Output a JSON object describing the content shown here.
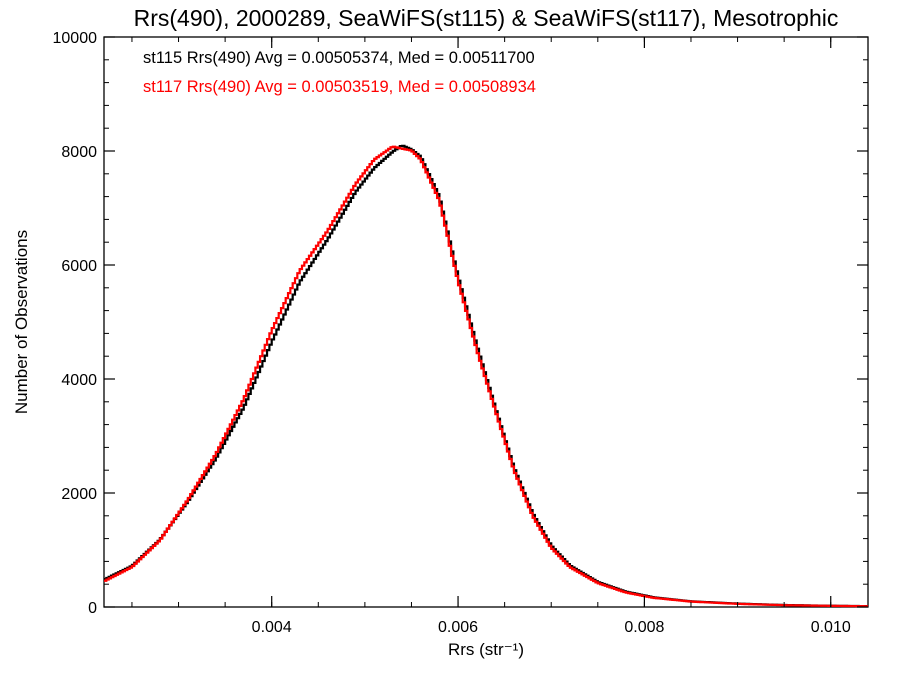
{
  "chart_data": {
    "type": "line",
    "title": "Rrs(490), 2000289, SeaWiFS(st115) & SeaWiFS(st117), Mesotrophic",
    "xlabel": "Rrs (str⁻¹)",
    "ylabel": "Number of Observations",
    "xlim": [
      0.0022,
      0.0104
    ],
    "ylim": [
      0,
      10000
    ],
    "xticks": [
      0.004,
      0.006,
      0.008,
      0.01
    ],
    "xtick_labels": [
      "0.004",
      "0.006",
      "0.008",
      "0.010"
    ],
    "yticks": [
      0,
      2000,
      4000,
      6000,
      8000,
      10000
    ],
    "ytick_labels": [
      "0",
      "2000",
      "4000",
      "6000",
      "8000",
      "10000"
    ],
    "grid": false,
    "legend_position": "top-left",
    "series": [
      {
        "name": "st115",
        "color": "#000000",
        "legend_text": "st115 Rrs(490) Avg = 0.00505374, Med = 0.00511700",
        "x": [
          0.0022,
          0.0025,
          0.0028,
          0.0031,
          0.0034,
          0.0037,
          0.004,
          0.0043,
          0.0046,
          0.0049,
          0.0051,
          0.0053,
          0.0054,
          0.0055,
          0.0056,
          0.0058,
          0.006,
          0.0062,
          0.0064,
          0.0066,
          0.0068,
          0.007,
          0.0072,
          0.0075,
          0.0078,
          0.0081,
          0.0085,
          0.009,
          0.0095,
          0.01,
          0.0104
        ],
        "values": [
          480,
          720,
          1180,
          1850,
          2600,
          3500,
          4650,
          5700,
          6450,
          7280,
          7700,
          7990,
          8100,
          8030,
          7900,
          7200,
          5800,
          4600,
          3500,
          2450,
          1650,
          1080,
          730,
          440,
          270,
          170,
          100,
          60,
          35,
          22,
          15
        ]
      },
      {
        "name": "st117",
        "color": "#ff0000",
        "legend_text": "st117 Rrs(490) Avg = 0.00503519, Med = 0.00508934",
        "x": [
          0.0022,
          0.0025,
          0.0028,
          0.0031,
          0.0034,
          0.0037,
          0.004,
          0.0043,
          0.0046,
          0.0049,
          0.0051,
          0.0053,
          0.0054,
          0.0055,
          0.0056,
          0.0058,
          0.006,
          0.0062,
          0.0064,
          0.0066,
          0.0068,
          0.007,
          0.0072,
          0.0075,
          0.0078,
          0.0081,
          0.0085,
          0.009,
          0.0095,
          0.01,
          0.0104
        ],
        "values": [
          450,
          700,
          1170,
          1880,
          2680,
          3650,
          4850,
          5900,
          6600,
          7420,
          7850,
          8080,
          8040,
          8010,
          7850,
          7130,
          5720,
          4520,
          3450,
          2400,
          1600,
          1040,
          700,
          420,
          255,
          160,
          95,
          55,
          32,
          20,
          14
        ]
      }
    ]
  }
}
